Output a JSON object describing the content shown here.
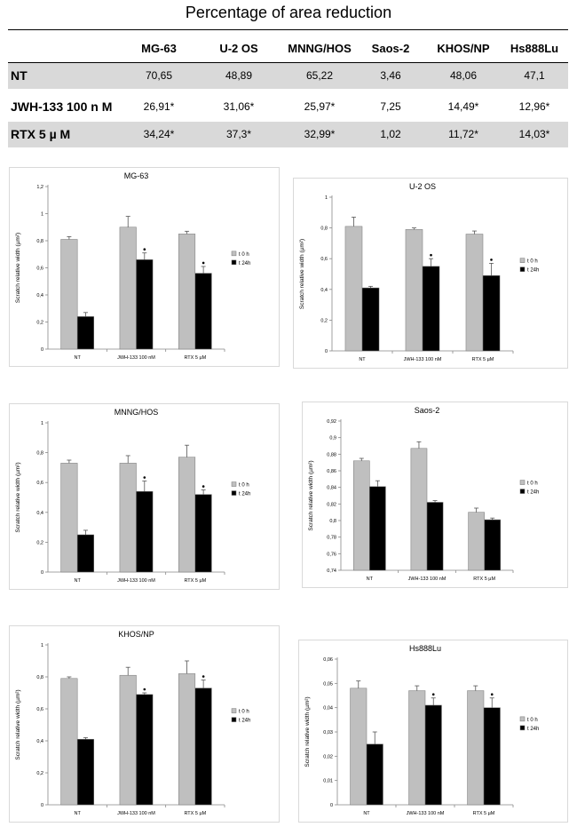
{
  "title": "Percentage of area reduction",
  "table": {
    "columns": [
      "MG-63",
      "U-2 OS",
      "MNNG/HOS",
      "Saos-2",
      "KHOS/NP",
      "Hs888Lu"
    ],
    "rows": [
      {
        "label": "NT",
        "values": [
          "70,65",
          "48,89",
          "65,22",
          "3,46",
          "48,06",
          "47,1"
        ]
      },
      {
        "label": "JWH-133 100 n M",
        "values": [
          "26,91*",
          "31,06*",
          "25,97*",
          "7,25",
          "14,49*",
          "12,96*"
        ]
      },
      {
        "label": "RTX 5 µ M",
        "values": [
          "34,24*",
          "37,3*",
          "32,99*",
          "1,02",
          "11,72*",
          "14,03*"
        ]
      }
    ]
  },
  "colors": {
    "t0": "#bfbfbf",
    "t24": "#000000",
    "shade": "#d9d9d9"
  },
  "chart_data": [
    {
      "type": "bar",
      "title": "MG-63",
      "categories": [
        "NT",
        "JWH-133 100 nM",
        "RTX 5 µM"
      ],
      "series": [
        {
          "name": "t 0 h",
          "values": [
            0.81,
            0.9,
            0.85
          ],
          "errors": [
            0.02,
            0.08,
            0.02
          ],
          "sig": [
            false,
            false,
            false
          ]
        },
        {
          "name": "t 24h",
          "values": [
            0.24,
            0.66,
            0.56
          ],
          "errors": [
            0.03,
            0.05,
            0.05
          ],
          "sig": [
            false,
            true,
            true
          ]
        }
      ],
      "ylabel": "Scratch relative width (µm²)",
      "ylim": [
        0,
        1.2
      ],
      "yticks": [
        0,
        0.2,
        0.4,
        0.6,
        0.8,
        1,
        1.2
      ],
      "yticklabels": [
        "0",
        "0,2",
        "0,4",
        "0,6",
        "0,8",
        "1",
        "1,2"
      ],
      "legend": "right"
    },
    {
      "type": "bar",
      "title": "U-2 OS",
      "categories": [
        "NT",
        "JWH-133 100 nM",
        "RTX 5 µM"
      ],
      "series": [
        {
          "name": "t 0 h",
          "values": [
            0.81,
            0.79,
            0.76
          ],
          "errors": [
            0.06,
            0.01,
            0.02
          ],
          "sig": [
            false,
            false,
            false
          ]
        },
        {
          "name": "t 24h",
          "values": [
            0.41,
            0.55,
            0.49
          ],
          "errors": [
            0.01,
            0.05,
            0.08
          ],
          "sig": [
            false,
            true,
            true
          ]
        }
      ],
      "ylabel": "Scratch relative width (µm²)",
      "ylim": [
        0,
        1
      ],
      "yticks": [
        0,
        0.2,
        0.4,
        0.6,
        0.8,
        1
      ],
      "yticklabels": [
        "0",
        "0,2",
        "0,4",
        "0,6",
        "0,8",
        "1"
      ],
      "legend": "right"
    },
    {
      "type": "bar",
      "title": "MNNG/HOS",
      "categories": [
        "NT",
        "JWH-133 100 nM",
        "RTX 5 µM"
      ],
      "series": [
        {
          "name": "t 0 h",
          "values": [
            0.73,
            0.73,
            0.77
          ],
          "errors": [
            0.02,
            0.05,
            0.08
          ],
          "sig": [
            false,
            false,
            false
          ]
        },
        {
          "name": "t 24h",
          "values": [
            0.25,
            0.54,
            0.52
          ],
          "errors": [
            0.03,
            0.07,
            0.03
          ],
          "sig": [
            false,
            true,
            true
          ]
        }
      ],
      "ylabel": "Scratch relative width (µm²)",
      "ylim": [
        0,
        1
      ],
      "yticks": [
        0,
        0.2,
        0.4,
        0.6,
        0.8,
        1
      ],
      "yticklabels": [
        "0",
        "0,2",
        "0,4",
        "0,6",
        "0,8",
        "1"
      ],
      "legend": "right"
    },
    {
      "type": "bar",
      "title": "Saos-2",
      "categories": [
        "NT",
        "JWH-133 100 nM",
        "RTX 5 µM"
      ],
      "series": [
        {
          "name": "t 0 h",
          "values": [
            0.872,
            0.887,
            0.81
          ],
          "errors": [
            0.003,
            0.008,
            0.005
          ],
          "sig": [
            false,
            false,
            false
          ]
        },
        {
          "name": "t 24h",
          "values": [
            0.841,
            0.822,
            0.801
          ],
          "errors": [
            0.007,
            0.002,
            0.002
          ],
          "sig": [
            false,
            false,
            false
          ]
        }
      ],
      "ylabel": "Scratch relative width (µm²)",
      "ylim": [
        0.74,
        0.92
      ],
      "yticks": [
        0.74,
        0.76,
        0.78,
        0.8,
        0.82,
        0.84,
        0.86,
        0.88,
        0.9,
        0.92
      ],
      "yticklabels": [
        "0,74",
        "0,76",
        "0,78",
        "0,8",
        "0,82",
        "0,84",
        "0,86",
        "0,88",
        "0,9",
        "0,92"
      ],
      "legend": "right"
    },
    {
      "type": "bar",
      "title": "KHOS/NP",
      "categories": [
        "NT",
        "JWH-133 100 nM",
        "RTX 5 µM"
      ],
      "series": [
        {
          "name": "t 0 h",
          "values": [
            0.79,
            0.81,
            0.82
          ],
          "errors": [
            0.01,
            0.05,
            0.08
          ],
          "sig": [
            false,
            false,
            false
          ]
        },
        {
          "name": "t 24h",
          "values": [
            0.41,
            0.69,
            0.73
          ],
          "errors": [
            0.01,
            0.01,
            0.05
          ],
          "sig": [
            false,
            true,
            true
          ]
        }
      ],
      "ylabel": "Scratch relative width (µm²)",
      "ylim": [
        0,
        1
      ],
      "yticks": [
        0,
        0.2,
        0.4,
        0.6,
        0.8,
        1
      ],
      "yticklabels": [
        "0",
        "0,2",
        "0,4",
        "0,6",
        "0,8",
        "1"
      ],
      "legend": "right"
    },
    {
      "type": "bar",
      "title": "Hs888Lu",
      "categories": [
        "NT",
        "JWH-133 100 nM",
        "RTX 5 µM"
      ],
      "series": [
        {
          "name": "t 0 h",
          "values": [
            0.048,
            0.047,
            0.047
          ],
          "errors": [
            0.003,
            0.002,
            0.002
          ],
          "sig": [
            false,
            false,
            false
          ]
        },
        {
          "name": "t 24h",
          "values": [
            0.025,
            0.041,
            0.04
          ],
          "errors": [
            0.005,
            0.003,
            0.004
          ],
          "sig": [
            false,
            true,
            true
          ]
        }
      ],
      "ylabel": "Scratch relative width (µm²)",
      "ylim": [
        0,
        0.06
      ],
      "yticks": [
        0,
        0.01,
        0.02,
        0.03,
        0.04,
        0.05,
        0.06
      ],
      "yticklabels": [
        "0",
        "0,01",
        "0,02",
        "0,03",
        "0,04",
        "0,05",
        "0,06"
      ],
      "legend": "right"
    }
  ]
}
